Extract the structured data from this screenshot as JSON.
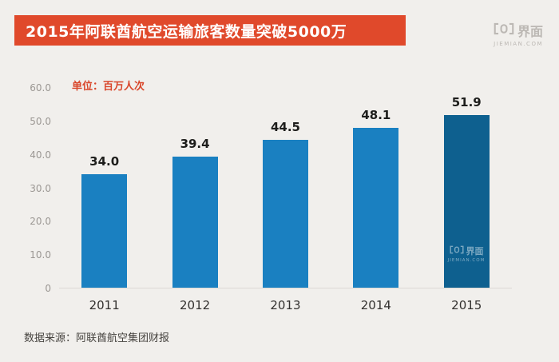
{
  "header": {
    "title": "2015年阿联酋航空运输旅客数量突破5000万",
    "banner_color": "#e0492b"
  },
  "brand": {
    "name": "界面",
    "domain": "JIEMIAN.COM",
    "logo_color": "#bcb8b4"
  },
  "chart_data": {
    "type": "bar",
    "title": "2015年阿联酋航空运输旅客数量突破5000万",
    "unit_label": "单位：百万人次",
    "categories": [
      "2011",
      "2012",
      "2013",
      "2014",
      "2015"
    ],
    "values": [
      34.0,
      39.4,
      44.5,
      48.1,
      51.9
    ],
    "value_labels": [
      "34.0",
      "39.4",
      "44.5",
      "48.1",
      "51.9"
    ],
    "ylim": [
      0,
      60
    ],
    "yticks": [
      "60.0",
      "50.0",
      "40.0",
      "30.0",
      "20.0",
      "10.0",
      "0"
    ],
    "grid": false,
    "legend": false,
    "bar_color": "#1a80c1",
    "highlight_color": "#0e608f",
    "highlight_index": 4,
    "source": "数据来源：阿联酋航空集团财报"
  }
}
